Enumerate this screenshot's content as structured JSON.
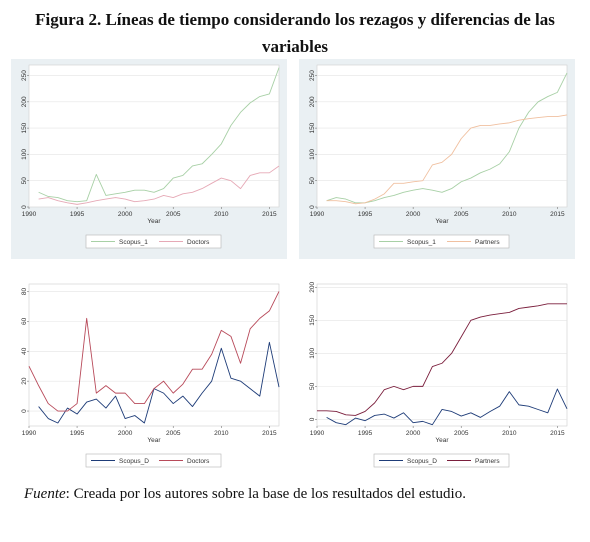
{
  "figure": {
    "title": "Figura 2. Líneas de tiempo considerando los rezagos y diferencias de las variables",
    "source_label": "Fuente",
    "source_text": ": Creada por los autores sobre la base de los resultados del estudio."
  },
  "chart_data": [
    {
      "type": "line",
      "background": "#eaf0f3",
      "xlabel": "Year",
      "xlim": [
        1990,
        2016
      ],
      "ylim": [
        0,
        270
      ],
      "xticks": [
        1990,
        1995,
        2000,
        2005,
        2010,
        2015
      ],
      "yticks": [
        0,
        50,
        100,
        150,
        200,
        250
      ],
      "grid": true,
      "legend": "bottom",
      "x": [
        1991,
        1992,
        1993,
        1994,
        1995,
        1996,
        1997,
        1998,
        1999,
        2000,
        2001,
        2002,
        2003,
        2004,
        2005,
        2006,
        2007,
        2008,
        2009,
        2010,
        2011,
        2012,
        2013,
        2014,
        2015,
        2016
      ],
      "series": [
        {
          "name": "Scopus_1",
          "color": "#a8d0a6",
          "values": [
            28,
            20,
            18,
            12,
            10,
            12,
            62,
            22,
            25,
            28,
            32,
            32,
            28,
            35,
            55,
            60,
            78,
            82,
            100,
            120,
            155,
            180,
            198,
            210,
            215,
            265
          ]
        },
        {
          "name": "Doctors",
          "color": "#e6a9b6",
          "values": [
            15,
            18,
            12,
            8,
            5,
            8,
            12,
            15,
            18,
            15,
            10,
            12,
            15,
            22,
            18,
            25,
            28,
            35,
            45,
            55,
            50,
            35,
            60,
            65,
            65,
            78
          ]
        }
      ]
    },
    {
      "type": "line",
      "background": "#eaf0f3",
      "xlabel": "Year",
      "xlim": [
        1990,
        2016
      ],
      "ylim": [
        0,
        270
      ],
      "xticks": [
        1990,
        1995,
        2000,
        2005,
        2010,
        2015
      ],
      "yticks": [
        0,
        50,
        100,
        150,
        200,
        250
      ],
      "grid": true,
      "legend": "bottom",
      "x": [
        1991,
        1992,
        1993,
        1994,
        1995,
        1996,
        1997,
        1998,
        1999,
        2000,
        2001,
        2002,
        2003,
        2004,
        2005,
        2006,
        2007,
        2008,
        2009,
        2010,
        2011,
        2012,
        2013,
        2014,
        2015,
        2016
      ],
      "series": [
        {
          "name": "Scopus_1",
          "color": "#a8d0a6",
          "values": [
            12,
            18,
            15,
            8,
            8,
            12,
            18,
            22,
            28,
            32,
            35,
            32,
            28,
            35,
            48,
            55,
            65,
            72,
            82,
            105,
            150,
            180,
            200,
            210,
            218,
            255
          ]
        },
        {
          "name": "Partners",
          "color": "#f0c0a0",
          "values": [
            12,
            12,
            10,
            6,
            8,
            15,
            25,
            45,
            45,
            48,
            50,
            80,
            85,
            100,
            130,
            150,
            155,
            155,
            158,
            160,
            165,
            168,
            170,
            172,
            172,
            175
          ]
        }
      ]
    },
    {
      "type": "line",
      "background": "#ffffff",
      "xlabel": "Year",
      "xlim": [
        1990,
        2016
      ],
      "ylim": [
        -10,
        85
      ],
      "xticks": [
        1990,
        1995,
        2000,
        2005,
        2010,
        2015
      ],
      "yticks": [
        0,
        20,
        40,
        60,
        80
      ],
      "grid": true,
      "legend": "bottom",
      "x": [
        1990,
        1991,
        1992,
        1993,
        1994,
        1995,
        1996,
        1997,
        1998,
        1999,
        2000,
        2001,
        2002,
        2003,
        2004,
        2005,
        2006,
        2007,
        2008,
        2009,
        2010,
        2011,
        2012,
        2013,
        2014,
        2015,
        2016
      ],
      "series": [
        {
          "name": "Scopus_D",
          "color": "#1e3c78",
          "values": [
            null,
            3,
            -5,
            -8,
            2,
            -2,
            6,
            8,
            2,
            10,
            -5,
            -3,
            -8,
            15,
            12,
            5,
            10,
            3,
            12,
            20,
            42,
            22,
            20,
            15,
            10,
            46,
            16
          ]
        },
        {
          "name": "Doctors",
          "color": "#b84a5a",
          "values": [
            30,
            17,
            5,
            0,
            0,
            5,
            62,
            12,
            17,
            12,
            12,
            5,
            5,
            15,
            20,
            12,
            18,
            28,
            28,
            38,
            54,
            50,
            32,
            55,
            62,
            67,
            80
          ]
        }
      ]
    },
    {
      "type": "line",
      "background": "#ffffff",
      "xlabel": "Year",
      "xlim": [
        1990,
        2016
      ],
      "ylim": [
        -10,
        205
      ],
      "xticks": [
        1990,
        1995,
        2000,
        2005,
        2010,
        2015
      ],
      "yticks": [
        0,
        50,
        100,
        150,
        200
      ],
      "grid": true,
      "legend": "bottom",
      "x": [
        1990,
        1991,
        1992,
        1993,
        1994,
        1995,
        1996,
        1997,
        1998,
        1999,
        2000,
        2001,
        2002,
        2003,
        2004,
        2005,
        2006,
        2007,
        2008,
        2009,
        2010,
        2011,
        2012,
        2013,
        2014,
        2015,
        2016
      ],
      "series": [
        {
          "name": "Scopus_D",
          "color": "#1e3c78",
          "values": [
            null,
            3,
            -5,
            -8,
            2,
            -2,
            6,
            8,
            2,
            10,
            -5,
            -3,
            -8,
            15,
            12,
            5,
            10,
            3,
            12,
            20,
            42,
            22,
            20,
            15,
            10,
            46,
            16
          ]
        },
        {
          "name": "Partners",
          "color": "#7a1e3c",
          "values": [
            13,
            13,
            12,
            7,
            6,
            12,
            25,
            45,
            50,
            45,
            50,
            50,
            80,
            85,
            100,
            125,
            150,
            155,
            158,
            160,
            162,
            168,
            170,
            172,
            175,
            175,
            175
          ]
        }
      ]
    }
  ]
}
